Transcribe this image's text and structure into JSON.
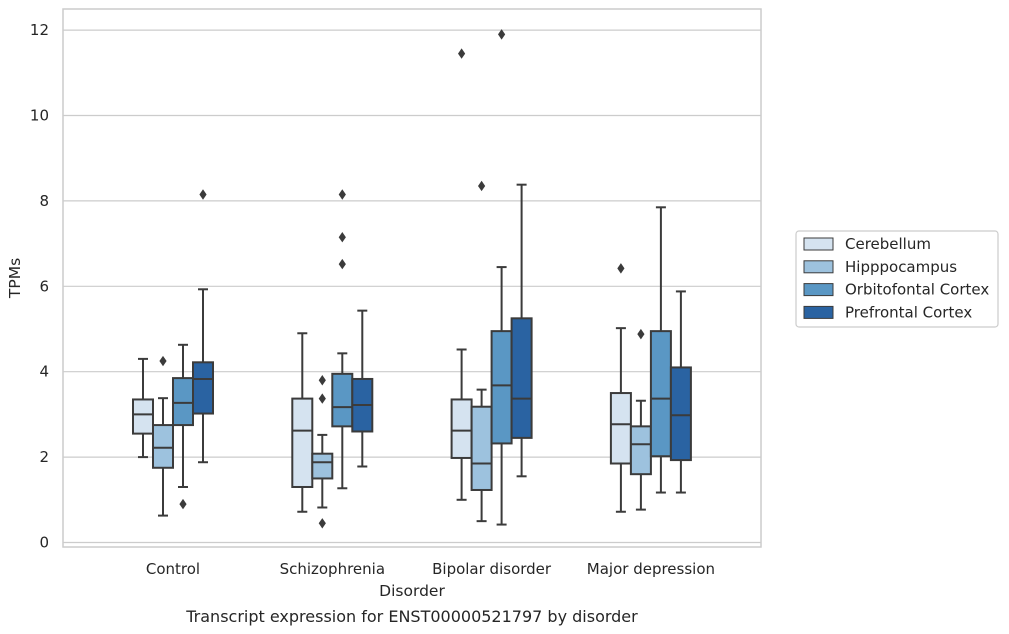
{
  "caption": "Transcript expression for ENST00000521797 by disorder",
  "chart_data": {
    "type": "boxplot",
    "xlabel": "Disorder",
    "ylabel": "TPMs",
    "ylim": [
      -0.1,
      12.5
    ],
    "yticks": [
      0,
      2,
      4,
      6,
      8,
      10,
      12
    ],
    "grid": "horizontal",
    "legend_position": "right",
    "categories": [
      "Control",
      "Schizophrenia",
      "Bipolar disorder",
      "Major depression"
    ],
    "series": [
      {
        "name": "Cerebellum",
        "color": "#d5e3f0",
        "boxes": [
          {
            "whislo": 2.0,
            "q1": 2.55,
            "med": 3.0,
            "q3": 3.35,
            "whishi": 4.3,
            "fliers": []
          },
          {
            "whislo": 0.72,
            "q1": 1.3,
            "med": 2.62,
            "q3": 3.37,
            "whishi": 4.9,
            "fliers": []
          },
          {
            "whislo": 1.0,
            "q1": 1.98,
            "med": 2.62,
            "q3": 3.35,
            "whishi": 4.52,
            "fliers": [
              11.45
            ]
          },
          {
            "whislo": 0.72,
            "q1": 1.85,
            "med": 2.77,
            "q3": 3.5,
            "whishi": 5.02,
            "fliers": [
              6.42
            ]
          }
        ]
      },
      {
        "name": "Hipppocampus",
        "color": "#9dc2de",
        "boxes": [
          {
            "whislo": 0.63,
            "q1": 1.75,
            "med": 2.22,
            "q3": 2.75,
            "whishi": 3.38,
            "fliers": [
              4.25
            ]
          },
          {
            "whislo": 0.82,
            "q1": 1.5,
            "med": 1.88,
            "q3": 2.08,
            "whishi": 2.52,
            "fliers": [
              3.8,
              3.37,
              0.45
            ]
          },
          {
            "whislo": 0.5,
            "q1": 1.23,
            "med": 1.85,
            "q3": 3.18,
            "whishi": 3.58,
            "fliers": [
              8.35
            ]
          },
          {
            "whislo": 0.77,
            "q1": 1.6,
            "med": 2.3,
            "q3": 2.72,
            "whishi": 3.32,
            "fliers": [
              4.88
            ]
          }
        ]
      },
      {
        "name": "Orbitofontal Cortex",
        "color": "#5a97c4",
        "boxes": [
          {
            "whislo": 1.3,
            "q1": 2.75,
            "med": 3.27,
            "q3": 3.85,
            "whishi": 4.63,
            "fliers": [
              0.9
            ]
          },
          {
            "whislo": 1.27,
            "q1": 2.72,
            "med": 3.17,
            "q3": 3.95,
            "whishi": 4.43,
            "fliers": [
              8.15,
              7.15,
              6.52
            ]
          },
          {
            "whislo": 0.42,
            "q1": 2.32,
            "med": 3.68,
            "q3": 4.95,
            "whishi": 6.45,
            "fliers": [
              11.9
            ]
          },
          {
            "whislo": 1.17,
            "q1": 2.02,
            "med": 3.37,
            "q3": 4.95,
            "whishi": 7.85,
            "fliers": []
          }
        ]
      },
      {
        "name": "Prefrontal Cortex",
        "color": "#2a63a2",
        "boxes": [
          {
            "whislo": 1.88,
            "q1": 3.02,
            "med": 3.83,
            "q3": 4.22,
            "whishi": 5.93,
            "fliers": [
              8.15
            ]
          },
          {
            "whislo": 1.78,
            "q1": 2.6,
            "med": 3.22,
            "q3": 3.83,
            "whishi": 5.43,
            "fliers": []
          },
          {
            "whislo": 1.55,
            "q1": 2.45,
            "med": 3.37,
            "q3": 5.25,
            "whishi": 8.38,
            "fliers": []
          },
          {
            "whislo": 1.17,
            "q1": 1.93,
            "med": 2.98,
            "q3": 4.1,
            "whishi": 5.88,
            "fliers": []
          }
        ]
      }
    ]
  }
}
